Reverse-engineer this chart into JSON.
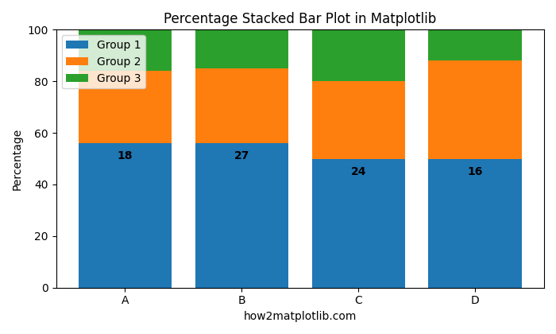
{
  "categories": [
    "A",
    "B",
    "C",
    "D"
  ],
  "group1": [
    56,
    56,
    50,
    50
  ],
  "group2": [
    28,
    29,
    30,
    38
  ],
  "group3": [
    16,
    15,
    20,
    12
  ],
  "group1_labels": [
    18,
    27,
    24,
    16
  ],
  "colors": [
    "#1f77b4",
    "#ff7f0e",
    "#2ca02c"
  ],
  "legend_labels": [
    "Group 1",
    "Group 2",
    "Group 3"
  ],
  "title": "Percentage Stacked Bar Plot in Matplotlib",
  "ylabel": "Percentage",
  "xlabel": "how2matplotlib.com",
  "ylim": [
    0,
    100
  ],
  "bar_width": 0.8
}
